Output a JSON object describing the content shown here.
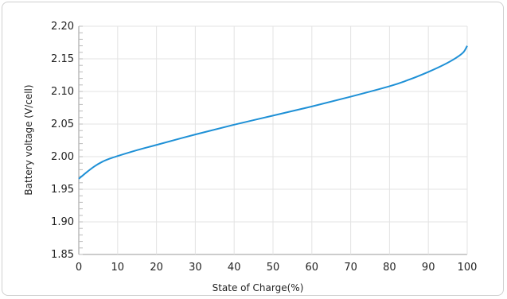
{
  "chart_data": {
    "type": "line",
    "title": "",
    "xlabel": "State of Charge(%)",
    "ylabel": "Battery voltage (V/cell)",
    "xlim": [
      0,
      100
    ],
    "ylim": [
      1.85,
      2.2
    ],
    "x_ticks": [
      "0",
      "10",
      "20",
      "30",
      "40",
      "50",
      "60",
      "70",
      "80",
      "90",
      "100"
    ],
    "y_ticks": [
      "2.20",
      "2.15",
      "2.10",
      "2.05",
      "2.00",
      "1.95",
      "1.90",
      "1.85"
    ],
    "grid": true,
    "line_color": "#1e90d6",
    "series": [
      {
        "x": [
          0,
          2,
          4,
          6,
          8,
          10,
          15,
          20,
          30,
          40,
          50,
          60,
          70,
          80,
          85,
          90,
          94,
          97,
          99,
          100
        ],
        "y": [
          1.966,
          1.976,
          1.985,
          1.992,
          1.997,
          2.001,
          2.01,
          2.018,
          2.034,
          2.049,
          2.063,
          2.077,
          2.092,
          2.108,
          2.118,
          2.13,
          2.141,
          2.151,
          2.16,
          2.17
        ]
      }
    ]
  }
}
